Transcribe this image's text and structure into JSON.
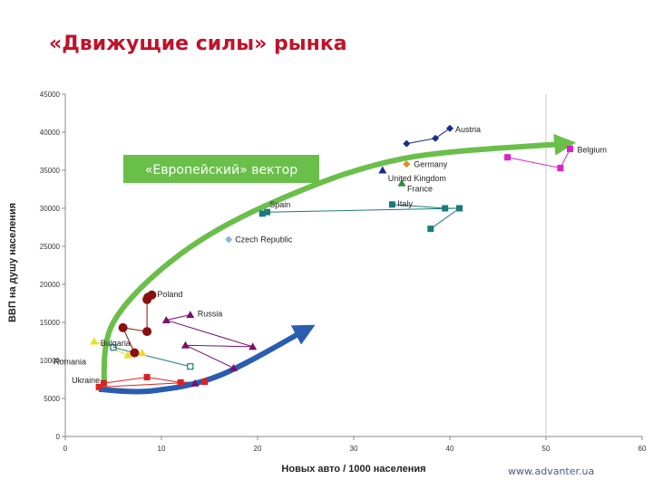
{
  "header": {
    "title": "«Движущие силы» рынка"
  },
  "footer": {
    "site": "www.advanter.ua"
  },
  "colors": {
    "title": "#c0122a",
    "green_arrow": "#6abf4b",
    "blue_arrow": "#2a5db0"
  },
  "chart_data": {
    "type": "scatter",
    "xlabel": "Новых авто / 1000 населения",
    "ylabel": "ВВП на душу населения",
    "xlim": [
      0,
      60
    ],
    "ylim": [
      0,
      45000
    ],
    "x_ticks": [
      "0",
      "10",
      "20",
      "30",
      "40",
      "50",
      "60"
    ],
    "y_ticks": [
      "0",
      "5000",
      "10000",
      "15000",
      "20000",
      "25000",
      "30000",
      "35000",
      "40000",
      "45000"
    ],
    "x_tick_values": [
      0,
      10,
      20,
      30,
      40,
      50,
      60
    ],
    "y_tick_values": [
      0,
      5000,
      10000,
      15000,
      20000,
      25000,
      30000,
      35000,
      40000,
      45000
    ],
    "grid": "vertical line at x=50",
    "annotations": {
      "european_vector": "«Европейский» вектор",
      "green_arrow": [
        [
          4,
          6000
        ],
        [
          5,
          15000
        ],
        [
          12,
          24000
        ],
        [
          22,
          31000
        ],
        [
          35,
          36500
        ],
        [
          52,
          38500
        ]
      ],
      "blue_arrow": [
        [
          3.5,
          6200
        ],
        [
          9,
          6000
        ],
        [
          16,
          8000
        ],
        [
          25,
          14000
        ]
      ]
    },
    "series": [
      {
        "name": "Austria",
        "color": "#1c2a8a",
        "marker": "diamond",
        "x": [
          35.5,
          38.5,
          40
        ],
        "y": [
          38500,
          39200,
          40500
        ],
        "label_at": [
          40,
          40500
        ]
      },
      {
        "name": "Belgium",
        "color": "#e020c8",
        "marker": "square",
        "x": [
          46,
          51.5,
          52.5
        ],
        "y": [
          36700,
          35300,
          37800
        ],
        "label_at": [
          52.5,
          37800
        ]
      },
      {
        "name": "Germany",
        "color": "#e08a20",
        "marker": "diamond",
        "x": [
          35.5
        ],
        "y": [
          35800
        ],
        "label_at": [
          35.5,
          35800
        ]
      },
      {
        "name": "United Kingdom",
        "color": "#1c2a8a",
        "marker": "triangle",
        "x": [
          33
        ],
        "y": [
          35000
        ],
        "label_at": [
          33,
          35000
        ]
      },
      {
        "name": "France",
        "color": "#2e8a3a",
        "marker": "triangle",
        "x": [
          35
        ],
        "y": [
          33300
        ],
        "label_at": [
          35,
          33300
        ]
      },
      {
        "name": "Italy",
        "color": "#1a7a7a",
        "marker": "square",
        "x": [
          34,
          39.5,
          41,
          38
        ],
        "y": [
          30500,
          30000,
          30000,
          27300
        ],
        "label_at": [
          34,
          30500
        ]
      },
      {
        "name": "Spain",
        "color": "#1a7a7a",
        "marker": "square",
        "x": [
          41,
          21,
          20.5
        ],
        "y": [
          30000,
          29500,
          29300
        ],
        "label_at": [
          20.5,
          30000
        ]
      },
      {
        "name": "Czech Republic",
        "color": "#8ab4d8",
        "marker": "diamond",
        "x": [
          17
        ],
        "y": [
          25900
        ],
        "label_at": [
          17,
          25900
        ]
      },
      {
        "name": "Poland",
        "color": "#8a1010",
        "marker": "circle",
        "x": [
          9,
          8.6,
          8.5,
          8.5,
          6,
          7.2
        ],
        "y": [
          18600,
          18300,
          18000,
          13800,
          14300,
          11000
        ],
        "label_at": [
          9,
          18600
        ]
      },
      {
        "name": "Russia",
        "color": "#7a0f6a",
        "marker": "triangle",
        "x": [
          13,
          10.5,
          19.5,
          12.5,
          17.5,
          13.5
        ],
        "y": [
          16000,
          15300,
          11800,
          12000,
          9000,
          7000
        ],
        "label_at": [
          13,
          16000
        ]
      },
      {
        "name": "Bulgaria",
        "color": "#e8e020",
        "marker": "triangle",
        "x": [
          3,
          6.5,
          8
        ],
        "y": [
          12500,
          10700,
          11000
        ],
        "label_at": [
          3,
          12500
        ]
      },
      {
        "name": "Romania",
        "color": "#1a7a7a",
        "marker": "square-open",
        "x": [
          5,
          13
        ],
        "y": [
          11700,
          9200
        ],
        "label_at": [
          5,
          11000
        ]
      },
      {
        "name": "Ukraine",
        "color": "#e02020",
        "marker": "square",
        "x": [
          4,
          8.5,
          12,
          14.5,
          3.5
        ],
        "y": [
          7000,
          7800,
          7100,
          7200,
          6500
        ],
        "label_at": [
          3.5,
          7500
        ]
      }
    ]
  }
}
